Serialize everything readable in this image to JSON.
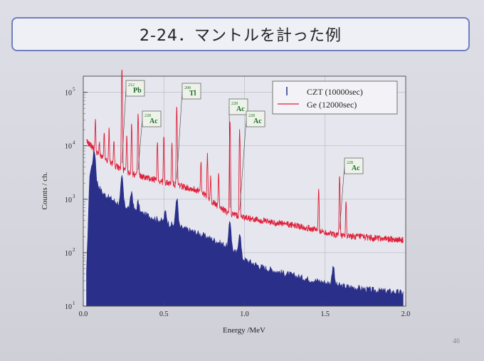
{
  "slide": {
    "title": "2-24．マントルを計った例",
    "page_number": "46"
  },
  "chart_data": {
    "type": "line",
    "xlabel": "Energy /MeV",
    "ylabel": "Counts / ch.",
    "xlim": [
      0,
      2.0
    ],
    "ylim": [
      10,
      200000
    ],
    "yscale": "log",
    "grid": true,
    "legend_position": "top-right",
    "x_ticks": [
      "0.0",
      "0.5",
      "1.0",
      "1.5",
      "2.0"
    ],
    "y_ticks": [
      {
        "v": 10,
        "mant": "10",
        "exp": "1"
      },
      {
        "v": 100,
        "mant": "10",
        "exp": "2"
      },
      {
        "v": 1000,
        "mant": "10",
        "exp": "3"
      },
      {
        "v": 10000,
        "mant": "10",
        "exp": "4"
      },
      {
        "v": 100000,
        "mant": "10",
        "exp": "5"
      }
    ],
    "series": [
      {
        "name": "CZT  (10000sec)",
        "color": "#2a2f8a",
        "style": "filled",
        "continuum": [
          [
            0.02,
            40
          ],
          [
            0.04,
            3000
          ],
          [
            0.06,
            5000
          ],
          [
            0.08,
            2200
          ],
          [
            0.12,
            1300
          ],
          [
            0.2,
            900
          ],
          [
            0.3,
            650
          ],
          [
            0.4,
            500
          ],
          [
            0.5,
            380
          ],
          [
            0.6,
            300
          ],
          [
            0.7,
            240
          ],
          [
            0.8,
            180
          ],
          [
            0.9,
            130
          ],
          [
            1.0,
            75
          ],
          [
            1.1,
            55
          ],
          [
            1.2,
            45
          ],
          [
            1.3,
            38
          ],
          [
            1.4,
            32
          ],
          [
            1.5,
            28
          ],
          [
            1.6,
            24
          ],
          [
            1.7,
            22
          ],
          [
            1.8,
            20
          ],
          [
            1.9,
            19
          ],
          [
            1.98,
            18
          ]
        ],
        "peaks": [
          [
            0.07,
            8000
          ],
          [
            0.24,
            2600
          ],
          [
            0.3,
            1400
          ],
          [
            0.34,
            900
          ],
          [
            0.51,
            600
          ],
          [
            0.58,
            1100
          ],
          [
            0.91,
            400
          ],
          [
            0.97,
            250
          ],
          [
            1.55,
            60
          ]
        ]
      },
      {
        "name": "Ge   (12000sec)",
        "color": "#e0203a",
        "style": "line",
        "continuum": [
          [
            0.02,
            12000
          ],
          [
            0.05,
            10000
          ],
          [
            0.1,
            6500
          ],
          [
            0.2,
            4200
          ],
          [
            0.3,
            3000
          ],
          [
            0.4,
            2500
          ],
          [
            0.5,
            2100
          ],
          [
            0.6,
            1800
          ],
          [
            0.7,
            1500
          ],
          [
            0.75,
            1250
          ],
          [
            0.8,
            900
          ],
          [
            0.85,
            700
          ],
          [
            0.9,
            550
          ],
          [
            1.0,
            460
          ],
          [
            1.1,
            400
          ],
          [
            1.2,
            360
          ],
          [
            1.3,
            330
          ],
          [
            1.4,
            290
          ],
          [
            1.5,
            240
          ],
          [
            1.6,
            210
          ],
          [
            1.7,
            200
          ],
          [
            1.8,
            190
          ],
          [
            1.9,
            180
          ],
          [
            1.98,
            175
          ]
        ],
        "peaks": [
          [
            0.075,
            30000
          ],
          [
            0.1,
            12000
          ],
          [
            0.13,
            18000
          ],
          [
            0.16,
            20000
          ],
          [
            0.19,
            14000
          ],
          [
            0.24,
            260000
          ],
          [
            0.27,
            15000
          ],
          [
            0.3,
            25000
          ],
          [
            0.34,
            40000
          ],
          [
            0.46,
            12000
          ],
          [
            0.5,
            15000
          ],
          [
            0.55,
            12000
          ],
          [
            0.58,
            50000
          ],
          [
            0.73,
            5000
          ],
          [
            0.77,
            7000
          ],
          [
            0.79,
            2500
          ],
          [
            0.84,
            3000
          ],
          [
            0.91,
            30000
          ],
          [
            0.97,
            20000
          ],
          [
            1.46,
            1500
          ],
          [
            1.59,
            2800
          ],
          [
            1.63,
            900
          ]
        ]
      }
    ],
    "annotations": [
      {
        "mass": "212",
        "element": "Pb",
        "x": 0.24
      },
      {
        "mass": "228",
        "element": "Ac",
        "x": 0.34
      },
      {
        "mass": "208",
        "element": "Tl",
        "x": 0.58
      },
      {
        "mass": "228",
        "element": "Ac",
        "x": 0.91
      },
      {
        "mass": "228",
        "element": "Ac",
        "x": 0.97
      },
      {
        "mass": "228",
        "element": "Ac",
        "x": 1.59
      }
    ]
  }
}
